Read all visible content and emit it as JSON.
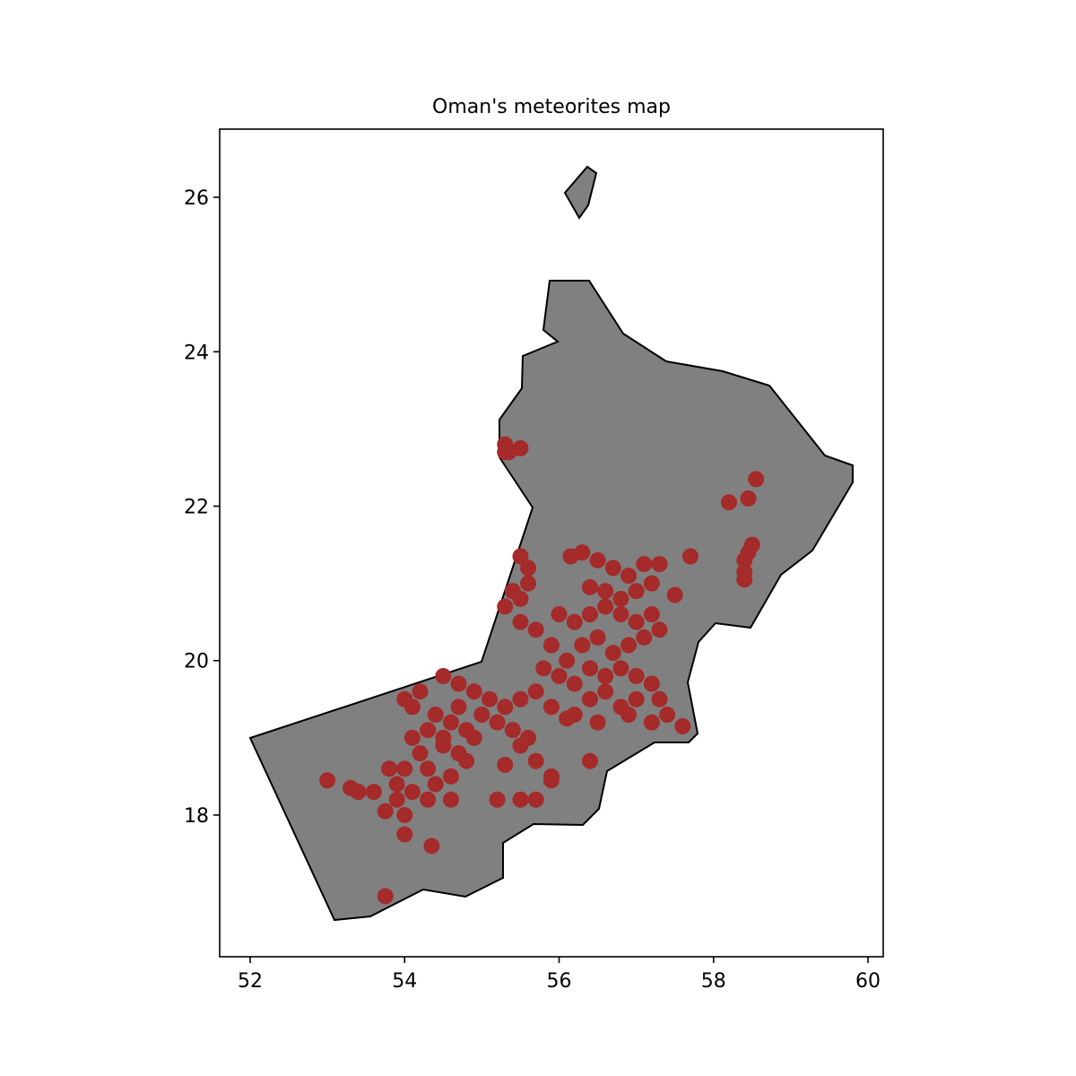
{
  "chart_data": {
    "type": "scatter",
    "title": "Oman's meteorites map",
    "color": "#a52a2a",
    "region_color": "#808080",
    "x": [
      55.3,
      55.35,
      55.5,
      55.3,
      58.2,
      58.45,
      58.55,
      58.4,
      58.4,
      58.5,
      58.4,
      58.45,
      57.7,
      57.5,
      55.5,
      55.6,
      55.6,
      55.4,
      55.5,
      55.3,
      56.15,
      56.3,
      56.5,
      56.7,
      56.9,
      57.1,
      57.3,
      57.2,
      57.0,
      56.8,
      56.6,
      56.4,
      56.0,
      56.2,
      56.4,
      56.6,
      56.8,
      57.0,
      57.2,
      57.3,
      57.1,
      56.9,
      56.7,
      56.5,
      56.3,
      56.1,
      55.9,
      55.7,
      55.5,
      55.8,
      56.0,
      56.2,
      56.4,
      56.6,
      56.8,
      57.0,
      57.2,
      57.3,
      57.0,
      56.8,
      56.6,
      56.4,
      56.2,
      56.5,
      56.9,
      57.2,
      57.6,
      57.4,
      56.1,
      55.9,
      55.7,
      55.5,
      55.3,
      55.1,
      54.9,
      55.0,
      55.2,
      55.4,
      55.6,
      55.5,
      55.3,
      55.7,
      55.9,
      55.9,
      55.7,
      55.5,
      55.2,
      56.4,
      54.0,
      54.2,
      54.5,
      54.7,
      54.1,
      54.4,
      54.6,
      54.8,
      54.3,
      54.1,
      54.5,
      54.7,
      54.2,
      54.0,
      54.3,
      54.6,
      54.4,
      54.1,
      53.9,
      53.8,
      54.3,
      54.6,
      54.0,
      53.75,
      53.9,
      54.8,
      54.9,
      53.6,
      53.4,
      53.3,
      53.0,
      54.0,
      54.35,
      53.75,
      54.5,
      54.7
    ],
    "values": [
      22.8,
      22.7,
      22.75,
      22.7,
      22.05,
      22.1,
      22.35,
      21.3,
      21.15,
      21.5,
      21.05,
      21.4,
      21.35,
      20.85,
      21.35,
      21.2,
      21.0,
      20.9,
      20.8,
      20.7,
      21.35,
      21.4,
      21.3,
      21.2,
      21.1,
      21.25,
      21.25,
      21.0,
      20.9,
      20.8,
      20.9,
      20.95,
      20.6,
      20.5,
      20.6,
      20.7,
      20.6,
      20.5,
      20.6,
      20.4,
      20.3,
      20.2,
      20.1,
      20.3,
      20.2,
      20.0,
      20.2,
      20.4,
      20.5,
      19.9,
      19.8,
      19.7,
      19.9,
      19.8,
      19.9,
      19.8,
      19.7,
      19.5,
      19.5,
      19.4,
      19.6,
      19.5,
      19.3,
      19.2,
      19.3,
      19.2,
      19.15,
      19.3,
      19.25,
      19.4,
      19.6,
      19.5,
      19.4,
      19.5,
      19.6,
      19.3,
      19.2,
      19.1,
      19.0,
      18.9,
      18.65,
      18.7,
      18.5,
      18.45,
      18.2,
      18.2,
      18.2,
      18.7,
      19.5,
      19.6,
      19.8,
      19.7,
      19.4,
      19.3,
      19.2,
      19.1,
      19.1,
      19.0,
      18.9,
      18.8,
      18.8,
      18.6,
      18.6,
      18.5,
      18.4,
      18.3,
      18.4,
      18.6,
      18.2,
      18.2,
      18.0,
      18.05,
      18.2,
      18.7,
      19.0,
      18.3,
      18.3,
      18.35,
      18.45,
      17.75,
      17.6,
      16.95,
      19.0,
      19.4
    ],
    "xlim": [
      51.605,
      60.197
    ],
    "ylim": [
      16.165,
      26.883
    ],
    "xticks": [
      52,
      54,
      56,
      58,
      60
    ],
    "yticks": [
      18,
      20,
      22,
      24,
      26
    ]
  }
}
